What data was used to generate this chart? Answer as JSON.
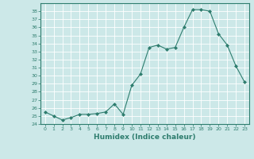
{
  "x": [
    0,
    1,
    2,
    3,
    4,
    5,
    6,
    7,
    8,
    9,
    10,
    11,
    12,
    13,
    14,
    15,
    16,
    17,
    18,
    19,
    20,
    21,
    22,
    23
  ],
  "y": [
    25.5,
    25.0,
    24.5,
    24.8,
    25.2,
    25.2,
    25.3,
    25.5,
    26.5,
    25.2,
    28.8,
    30.2,
    33.5,
    33.8,
    33.3,
    33.5,
    36.0,
    38.2,
    38.2,
    38.0,
    35.2,
    33.8,
    31.2,
    29.2
  ],
  "line_color": "#2e7d6e",
  "marker": "D",
  "marker_size": 2.0,
  "bg_color": "#cce8e8",
  "grid_color": "#ffffff",
  "xlabel": "Humidex (Indice chaleur)",
  "ylim": [
    24,
    39
  ],
  "xlim": [
    -0.5,
    23.5
  ],
  "yticks": [
    24,
    25,
    26,
    27,
    28,
    29,
    30,
    31,
    32,
    33,
    34,
    35,
    36,
    37,
    38
  ],
  "xticks": [
    0,
    1,
    2,
    3,
    4,
    5,
    6,
    7,
    8,
    9,
    10,
    11,
    12,
    13,
    14,
    15,
    16,
    17,
    18,
    19,
    20,
    21,
    22,
    23
  ],
  "xtick_labels": [
    "0",
    "1",
    "2",
    "3",
    "4",
    "5",
    "6",
    "7",
    "8",
    "9",
    "10",
    "11",
    "12",
    "13",
    "14",
    "15",
    "16",
    "17",
    "18",
    "19",
    "20",
    "21",
    "22",
    "23"
  ]
}
